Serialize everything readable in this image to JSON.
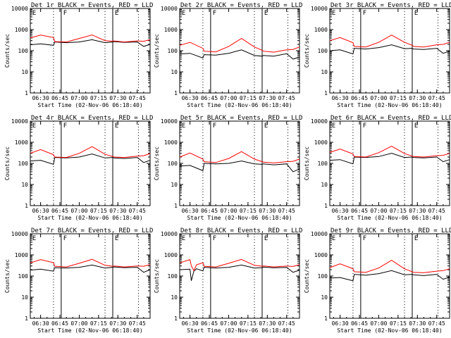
{
  "figure": {
    "type": "multi-panel-line",
    "rows": 3,
    "cols": 3
  },
  "common": {
    "x_tick_labels": [
      "06:30",
      "06:45",
      "07:00",
      "07:15",
      "07:30",
      "07:45"
    ],
    "x_tick_minutes": [
      30,
      45,
      60,
      75,
      90,
      105
    ],
    "x_label": "Start Time (02-Nov-06 06:18:40)",
    "y_label": "Counts/sec",
    "y_tick_labels": [
      "1",
      "10",
      "100",
      "1000",
      "10000"
    ],
    "y_scale": "log",
    "ylim": [
      1,
      10000
    ],
    "xlim_minutes": [
      22,
      115
    ],
    "solid_lines_minutes": [
      46,
      86
    ],
    "dotted_lines_minutes": [
      40,
      80,
      106
    ],
    "region_marks": [
      {
        "text": "E",
        "minute": 23
      },
      {
        "text": "F",
        "minute": 47
      },
      {
        "text": "E",
        "minute": 87
      }
    ],
    "colors": {
      "events": "#000000",
      "lld": "#ff0000",
      "axes": "#000000"
    }
  },
  "chart_data": [
    {
      "type": "line",
      "title": "Det 1r BLACK = Events, RED = LLD",
      "x": [
        22,
        30,
        40,
        41,
        50,
        60,
        70,
        80,
        86,
        87,
        95,
        105,
        110,
        115
      ],
      "series": [
        {
          "name": "BLACK = Events",
          "values": [
            190,
            210,
            180,
            260,
            240,
            260,
            330,
            240,
            260,
            270,
            250,
            260,
            160,
            200
          ],
          "color": "#000000"
        },
        {
          "name": "RED = LLD",
          "values": [
            400,
            550,
            420,
            270,
            260,
            380,
            560,
            300,
            280,
            290,
            260,
            290,
            280,
            330
          ],
          "color": "#ff0000"
        }
      ]
    },
    {
      "type": "line",
      "title": "Det 2r BLACK = Events, RED = LLD",
      "x": [
        22,
        30,
        40,
        41,
        50,
        60,
        70,
        80,
        86,
        87,
        95,
        105,
        110,
        115
      ],
      "series": [
        {
          "name": "BLACK = Events",
          "values": [
            70,
            75,
            45,
            65,
            62,
            75,
            110,
            60,
            55,
            60,
            55,
            72,
            40,
            50
          ],
          "color": "#000000"
        },
        {
          "name": "RED = LLD",
          "values": [
            180,
            250,
            130,
            95,
            88,
            160,
            380,
            150,
            105,
            95,
            85,
            110,
            115,
            150
          ],
          "color": "#ff0000"
        }
      ]
    },
    {
      "type": "line",
      "title": "Det 3r BLACK = Events, RED = LLD",
      "x": [
        22,
        30,
        40,
        41,
        50,
        60,
        70,
        80,
        86,
        87,
        95,
        105,
        110,
        115
      ],
      "series": [
        {
          "name": "BLACK = Events",
          "values": [
            100,
            110,
            70,
            130,
            120,
            140,
            190,
            125,
            130,
            120,
            115,
            130,
            75,
            95
          ],
          "color": "#000000"
        },
        {
          "name": "RED = LLD",
          "values": [
            300,
            420,
            240,
            160,
            150,
            250,
            550,
            250,
            180,
            160,
            150,
            190,
            200,
            250
          ],
          "color": "#ff0000"
        }
      ]
    },
    {
      "type": "line",
      "title": "Det 4r BLACK = Events, RED = LLD",
      "x": [
        22,
        30,
        40,
        41,
        50,
        60,
        70,
        80,
        86,
        87,
        95,
        105,
        110,
        115
      ],
      "series": [
        {
          "name": "BLACK = Events",
          "values": [
            130,
            140,
            90,
            190,
            180,
            200,
            280,
            180,
            190,
            180,
            170,
            190,
            110,
            140
          ],
          "color": "#000000"
        },
        {
          "name": "RED = LLD",
          "values": [
            300,
            450,
            260,
            200,
            190,
            300,
            620,
            270,
            210,
            200,
            190,
            220,
            230,
            290
          ],
          "color": "#ff0000"
        }
      ]
    },
    {
      "type": "line",
      "title": "Det 5r BLACK = Events, RED = LLD",
      "x": [
        22,
        30,
        40,
        41,
        50,
        60,
        70,
        80,
        86,
        87,
        95,
        105,
        110,
        115
      ],
      "series": [
        {
          "name": "BLACK = Events",
          "values": [
            75,
            80,
            45,
            100,
            95,
            100,
            130,
            95,
            90,
            95,
            85,
            95,
            40,
            55
          ],
          "color": "#000000"
        },
        {
          "name": "RED = LLD",
          "values": [
            200,
            310,
            160,
            120,
            110,
            170,
            360,
            160,
            120,
            115,
            105,
            120,
            125,
            160
          ],
          "color": "#ff0000"
        }
      ]
    },
    {
      "type": "line",
      "title": "Det 6r BLACK = Events, RED = LLD",
      "x": [
        22,
        30,
        40,
        41,
        50,
        60,
        70,
        80,
        86,
        87,
        95,
        105,
        110,
        115
      ],
      "series": [
        {
          "name": "BLACK = Events",
          "values": [
            140,
            150,
            95,
            200,
            190,
            210,
            300,
            190,
            200,
            190,
            180,
            200,
            120,
            150
          ],
          "color": "#000000"
        },
        {
          "name": "RED = LLD",
          "values": [
            330,
            480,
            280,
            210,
            200,
            320,
            650,
            290,
            220,
            210,
            200,
            230,
            240,
            300
          ],
          "color": "#ff0000"
        }
      ]
    },
    {
      "type": "line",
      "title": "Det 7r BLACK = Events, RED = LLD",
      "x": [
        22,
        30,
        40,
        41,
        50,
        60,
        70,
        80,
        86,
        87,
        95,
        105,
        110,
        115
      ],
      "series": [
        {
          "name": "BLACK = Events",
          "values": [
            190,
            210,
            170,
            250,
            240,
            260,
            330,
            240,
            260,
            270,
            250,
            260,
            150,
            200
          ],
          "color": "#000000"
        },
        {
          "name": "RED = LLD",
          "values": [
            420,
            600,
            430,
            290,
            270,
            400,
            620,
            320,
            290,
            300,
            270,
            300,
            290,
            350
          ],
          "color": "#ff0000"
        }
      ]
    },
    {
      "type": "line",
      "title": "Det 8r BLACK = Events, RED = LLD",
      "x": [
        22,
        30,
        31,
        33,
        35,
        40,
        41,
        50,
        60,
        70,
        80,
        86,
        87,
        95,
        105,
        110,
        115
      ],
      "series": [
        {
          "name": "BLACK = Events",
          "values": [
            200,
            210,
            60,
            170,
            220,
            175,
            260,
            240,
            260,
            330,
            240,
            250,
            265,
            245,
            255,
            150,
            190
          ],
          "color": "#000000"
        },
        {
          "name": "RED = LLD",
          "values": [
            420,
            600,
            300,
            180,
            340,
            430,
            290,
            270,
            400,
            610,
            320,
            290,
            300,
            270,
            295,
            285,
            345
          ],
          "color": "#ff0000"
        }
      ]
    },
    {
      "type": "line",
      "title": "Det 9r BLACK = Events, RED = LLD",
      "x": [
        22,
        30,
        40,
        41,
        50,
        60,
        70,
        80,
        86,
        87,
        95,
        105,
        110,
        115
      ],
      "series": [
        {
          "name": "BLACK = Events",
          "values": [
            80,
            85,
            60,
            120,
            110,
            130,
            180,
            115,
            120,
            115,
            105,
            120,
            70,
            90
          ],
          "color": "#000000"
        },
        {
          "name": "RED = LLD",
          "values": [
            250,
            380,
            220,
            160,
            150,
            240,
            560,
            220,
            160,
            150,
            145,
            170,
            180,
            220
          ],
          "color": "#ff0000"
        }
      ]
    }
  ]
}
